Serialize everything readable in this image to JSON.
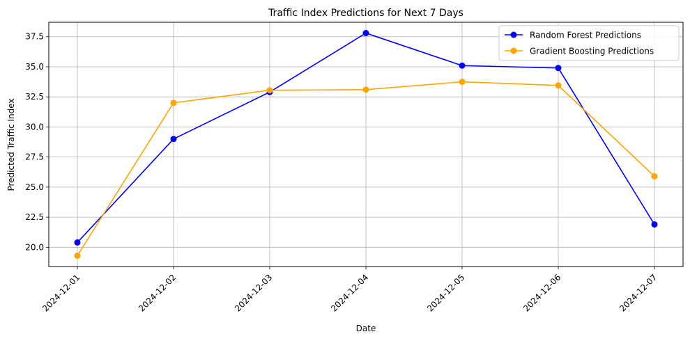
{
  "chart_data": {
    "type": "line",
    "title": "Traffic Index Predictions for Next 7 Days",
    "xlabel": "Date",
    "ylabel": "Predicted Traffic Index",
    "categories": [
      "2024-12-01",
      "2024-12-02",
      "2024-12-03",
      "2024-12-04",
      "2024-12-05",
      "2024-12-06",
      "2024-12-07"
    ],
    "ylim": [
      18.4,
      38.7
    ],
    "yticks": [
      "20.0",
      "22.5",
      "25.0",
      "27.5",
      "30.0",
      "32.5",
      "35.0",
      "37.5"
    ],
    "grid": true,
    "legend_position": "top-right",
    "series": [
      {
        "name": "Random Forest Predictions",
        "color": "#0000ff",
        "marker": "circle",
        "values": [
          20.4,
          29.0,
          32.9,
          37.8,
          35.1,
          34.9,
          21.9
        ]
      },
      {
        "name": "Gradient Boosting Predictions",
        "color": "#ffa500",
        "marker": "circle",
        "values": [
          19.3,
          32.0,
          33.05,
          33.1,
          33.75,
          33.45,
          25.9
        ]
      }
    ]
  }
}
